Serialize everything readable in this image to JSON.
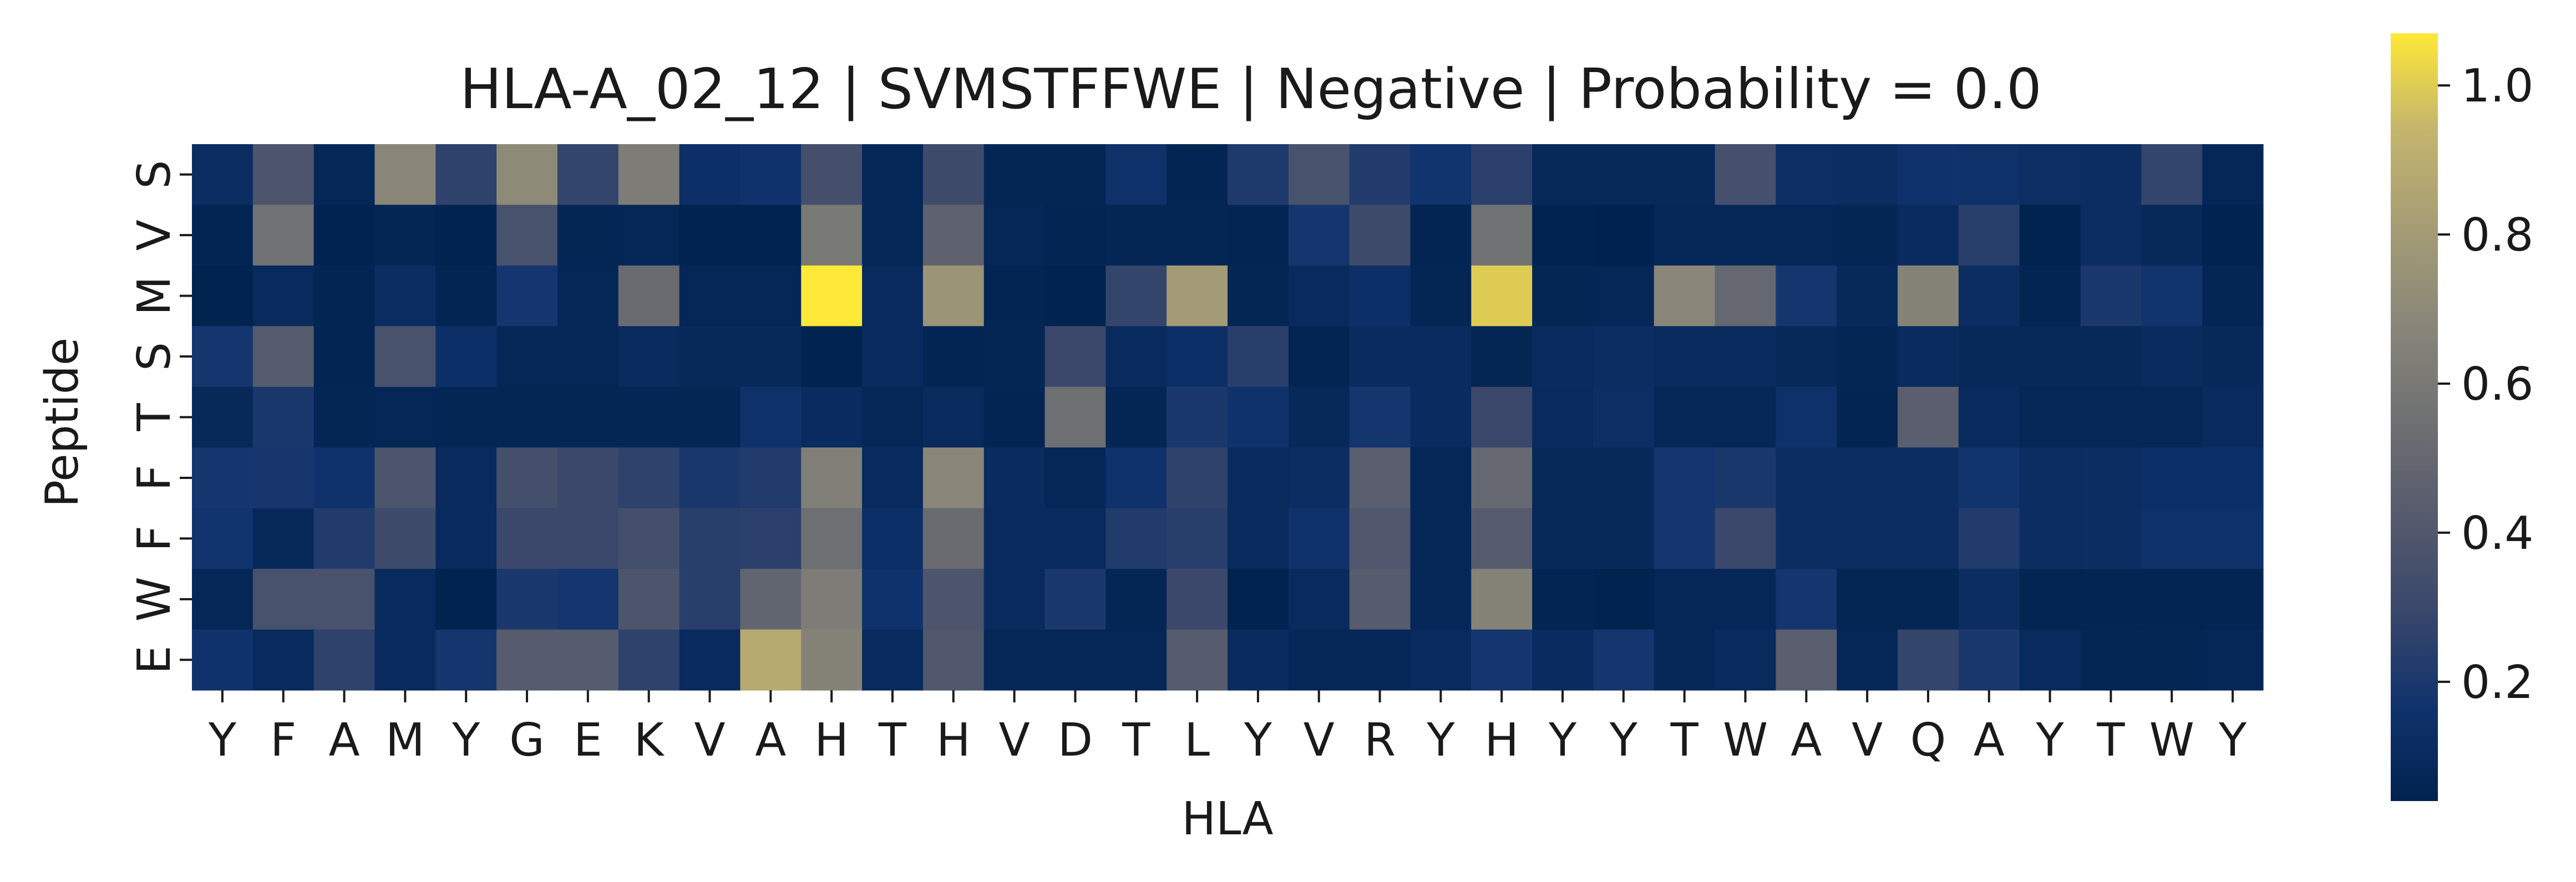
{
  "chart_data": {
    "type": "heatmap",
    "title": "HLA-A_02_12 | SVMSTFFWE | Negative | Probability = 0.0",
    "xlabel": "HLA",
    "ylabel": "Peptide",
    "x_categories": [
      "Y",
      "F",
      "A",
      "M",
      "Y",
      "G",
      "E",
      "K",
      "V",
      "A",
      "H",
      "T",
      "H",
      "V",
      "D",
      "T",
      "L",
      "Y",
      "V",
      "R",
      "Y",
      "H",
      "Y",
      "Y",
      "T",
      "W",
      "A",
      "V",
      "Q",
      "A",
      "Y",
      "T",
      "W",
      "Y"
    ],
    "y_categories": [
      "S",
      "V",
      "M",
      "S",
      "T",
      "F",
      "F",
      "W",
      "E"
    ],
    "colormap": "cividis",
    "colorbar": {
      "range": [
        0.04,
        1.07
      ],
      "ticks": [
        0.2,
        0.4,
        0.6,
        0.8,
        1.0
      ],
      "tick_labels": [
        "0.2",
        "0.4",
        "0.6",
        "0.8",
        "1.0"
      ]
    },
    "values": [
      [
        0.12,
        0.38,
        0.08,
        0.68,
        0.26,
        0.7,
        0.28,
        0.62,
        0.14,
        0.16,
        0.34,
        0.08,
        0.32,
        0.07,
        0.07,
        0.15,
        0.06,
        0.21,
        0.36,
        0.22,
        0.17,
        0.25,
        0.09,
        0.09,
        0.09,
        0.35,
        0.13,
        0.12,
        0.16,
        0.15,
        0.13,
        0.12,
        0.28,
        0.08
      ],
      [
        0.06,
        0.56,
        0.05,
        0.07,
        0.05,
        0.36,
        0.07,
        0.08,
        0.05,
        0.05,
        0.6,
        0.08,
        0.46,
        0.08,
        0.06,
        0.07,
        0.07,
        0.06,
        0.18,
        0.32,
        0.06,
        0.56,
        0.05,
        0.04,
        0.08,
        0.08,
        0.08,
        0.07,
        0.11,
        0.24,
        0.05,
        0.12,
        0.09,
        0.05
      ],
      [
        0.05,
        0.1,
        0.06,
        0.12,
        0.06,
        0.18,
        0.08,
        0.52,
        0.08,
        0.08,
        1.07,
        0.1,
        0.76,
        0.06,
        0.05,
        0.28,
        0.8,
        0.07,
        0.1,
        0.14,
        0.07,
        1.0,
        0.07,
        0.08,
        0.68,
        0.5,
        0.18,
        0.09,
        0.66,
        0.12,
        0.06,
        0.2,
        0.17,
        0.07
      ],
      [
        0.18,
        0.42,
        0.06,
        0.36,
        0.14,
        0.08,
        0.08,
        0.1,
        0.09,
        0.09,
        0.05,
        0.1,
        0.06,
        0.07,
        0.3,
        0.1,
        0.14,
        0.24,
        0.06,
        0.11,
        0.11,
        0.07,
        0.11,
        0.12,
        0.1,
        0.1,
        0.09,
        0.07,
        0.11,
        0.09,
        0.09,
        0.09,
        0.1,
        0.09
      ],
      [
        0.09,
        0.2,
        0.07,
        0.08,
        0.07,
        0.07,
        0.07,
        0.07,
        0.07,
        0.15,
        0.11,
        0.08,
        0.1,
        0.06,
        0.54,
        0.07,
        0.2,
        0.16,
        0.09,
        0.18,
        0.11,
        0.3,
        0.1,
        0.13,
        0.08,
        0.08,
        0.15,
        0.06,
        0.44,
        0.1,
        0.08,
        0.08,
        0.08,
        0.1
      ],
      [
        0.18,
        0.19,
        0.16,
        0.38,
        0.1,
        0.34,
        0.3,
        0.26,
        0.2,
        0.22,
        0.64,
        0.1,
        0.68,
        0.11,
        0.08,
        0.16,
        0.26,
        0.1,
        0.12,
        0.44,
        0.08,
        0.5,
        0.09,
        0.09,
        0.18,
        0.2,
        0.12,
        0.12,
        0.12,
        0.17,
        0.12,
        0.12,
        0.14,
        0.14
      ],
      [
        0.17,
        0.09,
        0.22,
        0.32,
        0.1,
        0.3,
        0.3,
        0.34,
        0.24,
        0.25,
        0.54,
        0.14,
        0.52,
        0.1,
        0.11,
        0.22,
        0.24,
        0.1,
        0.16,
        0.4,
        0.08,
        0.42,
        0.09,
        0.09,
        0.18,
        0.3,
        0.12,
        0.12,
        0.12,
        0.22,
        0.12,
        0.12,
        0.15,
        0.15
      ],
      [
        0.08,
        0.36,
        0.36,
        0.1,
        0.05,
        0.2,
        0.18,
        0.38,
        0.24,
        0.48,
        0.62,
        0.16,
        0.38,
        0.1,
        0.2,
        0.07,
        0.3,
        0.05,
        0.1,
        0.42,
        0.08,
        0.66,
        0.06,
        0.05,
        0.08,
        0.08,
        0.18,
        0.07,
        0.07,
        0.12,
        0.06,
        0.06,
        0.06,
        0.06
      ],
      [
        0.16,
        0.1,
        0.26,
        0.1,
        0.18,
        0.42,
        0.42,
        0.26,
        0.1,
        0.88,
        0.66,
        0.1,
        0.4,
        0.08,
        0.08,
        0.08,
        0.42,
        0.11,
        0.08,
        0.08,
        0.1,
        0.18,
        0.11,
        0.18,
        0.08,
        0.1,
        0.44,
        0.08,
        0.28,
        0.2,
        0.1,
        0.07,
        0.07,
        0.08
      ]
    ]
  }
}
